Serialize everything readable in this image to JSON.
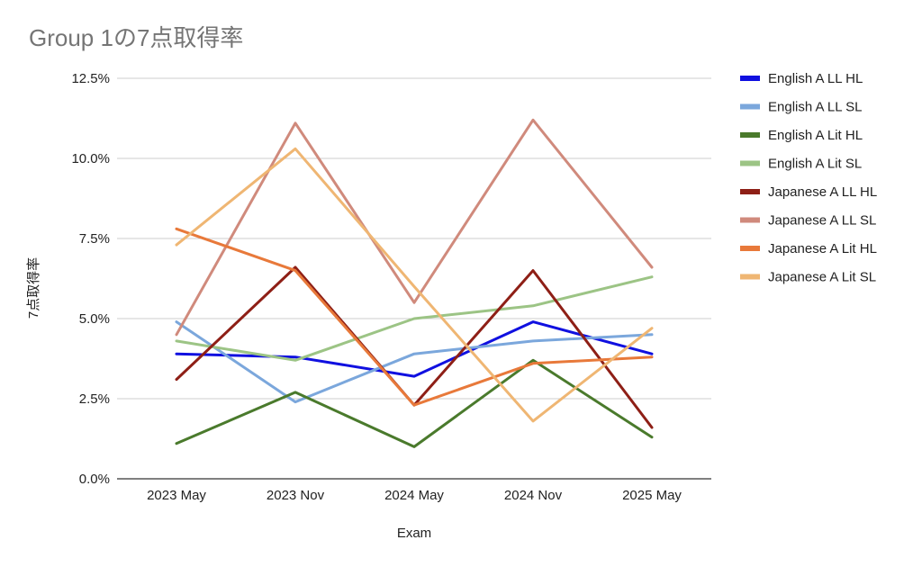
{
  "chart_data": {
    "type": "line",
    "title": "Group 1の7点取得率",
    "xlabel": "Exam",
    "ylabel": "7点取得率",
    "categories": [
      "2023 May",
      "2023 Nov",
      "2024 May",
      "2024 Nov",
      "2025 May"
    ],
    "ylim": [
      0,
      12.5
    ],
    "yticks": [
      {
        "value": 0,
        "label": "0.0%"
      },
      {
        "value": 2.5,
        "label": "2.5%"
      },
      {
        "value": 5,
        "label": "5.0%"
      },
      {
        "value": 7.5,
        "label": "7.5%"
      },
      {
        "value": 10,
        "label": "10.0%"
      },
      {
        "value": 12.5,
        "label": "12.5%"
      }
    ],
    "grid": true,
    "legend_position": "right",
    "series": [
      {
        "name": "English A LL HL",
        "color": "#1010e0",
        "values": [
          3.9,
          3.8,
          3.2,
          4.9,
          3.9
        ]
      },
      {
        "name": "English A LL SL",
        "color": "#7ba7dc",
        "values": [
          4.9,
          2.4,
          3.9,
          4.3,
          4.5
        ]
      },
      {
        "name": "English A Lit HL",
        "color": "#4a7a2c",
        "values": [
          1.1,
          2.7,
          1.0,
          3.7,
          1.3
        ]
      },
      {
        "name": "English A Lit SL",
        "color": "#9cc485",
        "values": [
          4.3,
          3.7,
          5.0,
          5.4,
          6.3
        ]
      },
      {
        "name": "Japanese A LL HL",
        "color": "#8e1f16",
        "values": [
          3.1,
          6.6,
          2.3,
          6.5,
          1.6
        ]
      },
      {
        "name": "Japanese A LL SL",
        "color": "#d08a7c",
        "values": [
          4.5,
          11.1,
          5.5,
          11.2,
          6.6
        ]
      },
      {
        "name": "Japanese A Lit HL",
        "color": "#e8793a",
        "values": [
          7.8,
          6.5,
          2.3,
          3.6,
          3.8
        ]
      },
      {
        "name": "Japanese A Lit SL",
        "color": "#efb673",
        "values": [
          7.3,
          10.3,
          6.0,
          1.8,
          4.7
        ]
      }
    ]
  }
}
